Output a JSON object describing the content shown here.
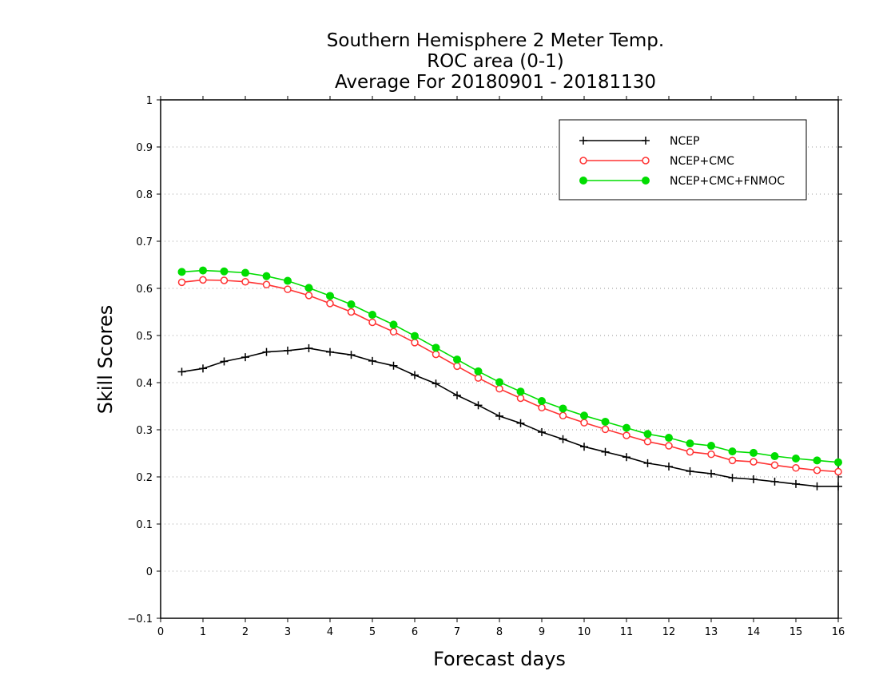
{
  "chart_data": {
    "type": "line",
    "title_lines": [
      "Southern Hemisphere 2 Meter Temp.",
      "ROC area (0-1)",
      "Average For 20180901 - 20181130"
    ],
    "xlabel": "Forecast days",
    "ylabel": "Skill Scores",
    "xlim": [
      0,
      16
    ],
    "ylim": [
      -0.1,
      1
    ],
    "x_ticks": [
      "0",
      "1",
      "2",
      "3",
      "4",
      "5",
      "6",
      "7",
      "8",
      "9",
      "10",
      "11",
      "12",
      "13",
      "14",
      "15",
      "16"
    ],
    "y_ticks": [
      "−0.1",
      "0",
      "0.1",
      "0.2",
      "0.3",
      "0.4",
      "0.5",
      "0.6",
      "0.7",
      "0.8",
      "0.9",
      "1"
    ],
    "grid": "horizontal dotted",
    "legend_position": "top-right",
    "x": [
      0.5,
      1,
      1.5,
      2,
      2.5,
      3,
      3.5,
      4,
      4.5,
      5,
      5.5,
      6,
      6.5,
      7,
      7.5,
      8,
      8.5,
      9,
      9.5,
      10,
      10.5,
      11,
      11.5,
      12,
      12.5,
      13,
      13.5,
      14,
      14.5,
      15,
      15.5,
      16
    ],
    "series": [
      {
        "name": "NCEP",
        "color": "#000000",
        "marker": "plus",
        "values": [
          0.423,
          0.43,
          0.445,
          0.454,
          0.465,
          0.468,
          0.473,
          0.465,
          0.459,
          0.446,
          0.436,
          0.416,
          0.398,
          0.373,
          0.352,
          0.329,
          0.314,
          0.295,
          0.28,
          0.264,
          0.253,
          0.242,
          0.229,
          0.222,
          0.212,
          0.207,
          0.198,
          0.195,
          0.19,
          0.185,
          0.18,
          0.18
        ]
      },
      {
        "name": "NCEP+CMC",
        "color": "#ff3333",
        "marker": "open-circle",
        "values": [
          0.613,
          0.618,
          0.617,
          0.614,
          0.608,
          0.598,
          0.585,
          0.568,
          0.55,
          0.528,
          0.508,
          0.485,
          0.46,
          0.435,
          0.41,
          0.387,
          0.367,
          0.347,
          0.33,
          0.315,
          0.301,
          0.288,
          0.275,
          0.266,
          0.253,
          0.248,
          0.235,
          0.232,
          0.225,
          0.219,
          0.214,
          0.211
        ]
      },
      {
        "name": "NCEP+CMC+FNMOC",
        "color": "#00dd00",
        "marker": "filled-circle",
        "values": [
          0.635,
          0.638,
          0.636,
          0.633,
          0.626,
          0.616,
          0.601,
          0.584,
          0.566,
          0.544,
          0.523,
          0.499,
          0.474,
          0.449,
          0.424,
          0.401,
          0.381,
          0.361,
          0.345,
          0.33,
          0.317,
          0.304,
          0.291,
          0.283,
          0.271,
          0.266,
          0.254,
          0.251,
          0.244,
          0.239,
          0.235,
          0.231
        ]
      }
    ]
  }
}
